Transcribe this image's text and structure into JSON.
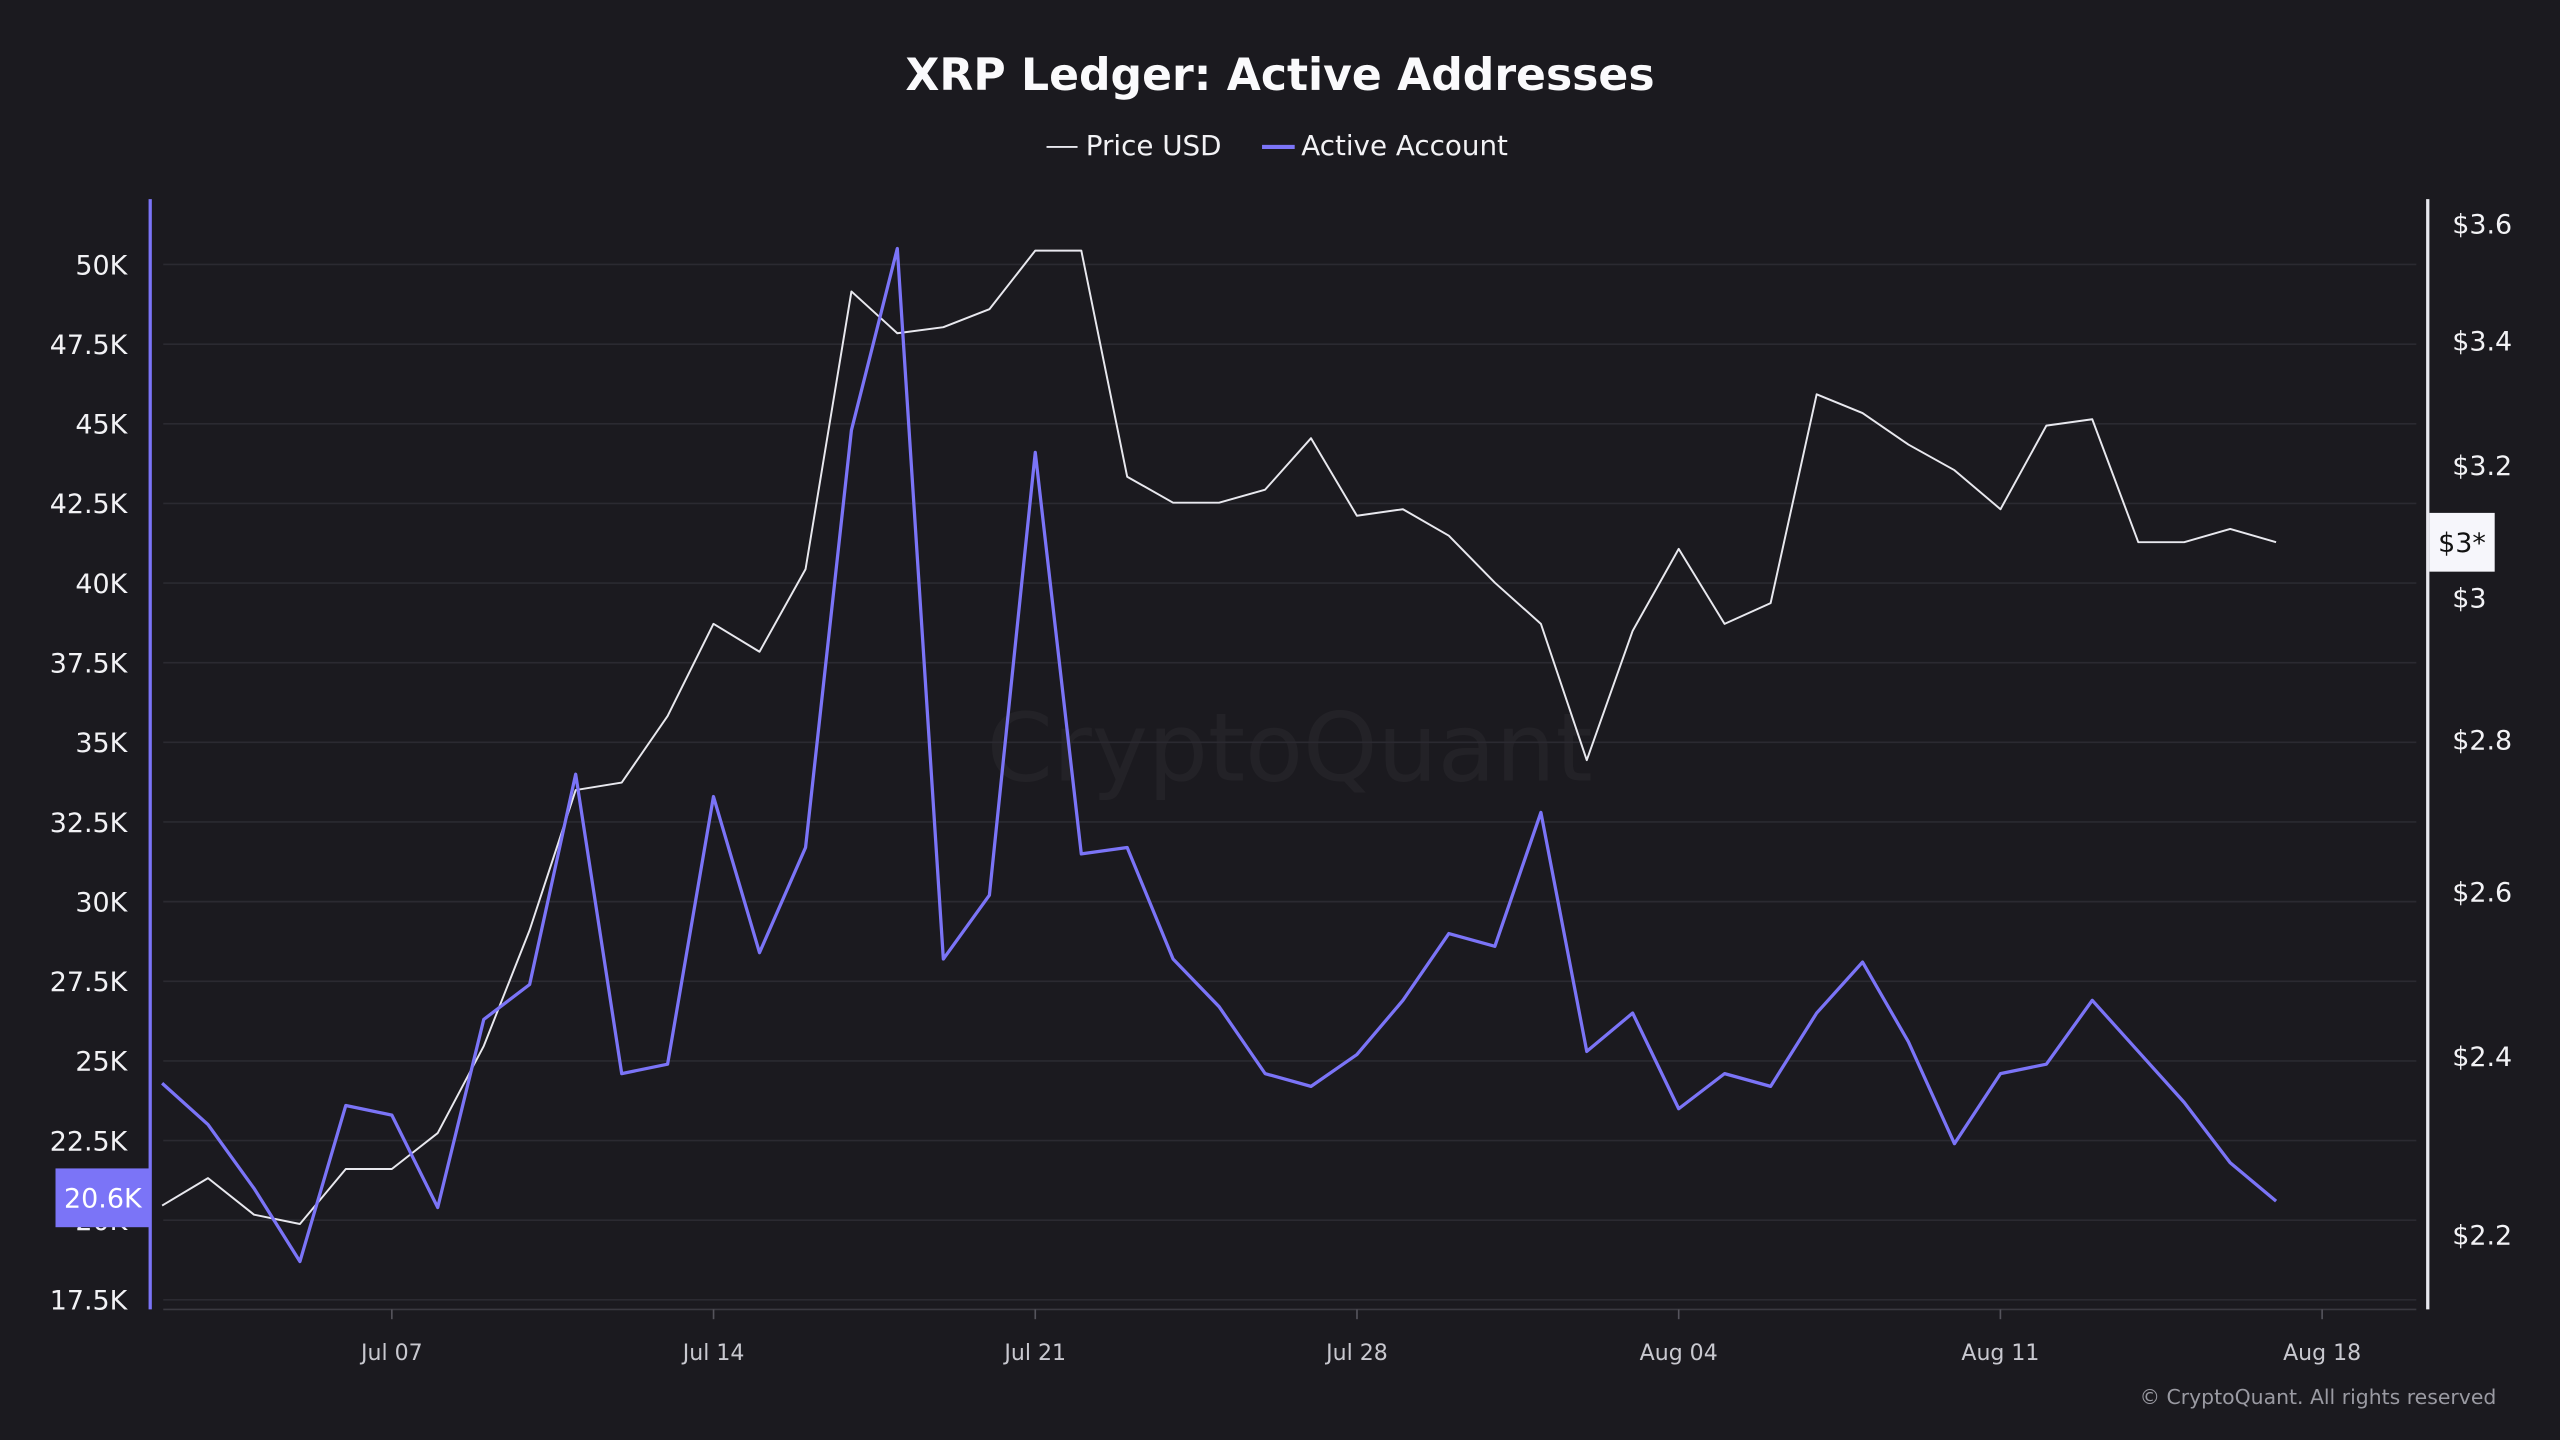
{
  "chart_data": {
    "type": "line",
    "title": "XRP Ledger: Active Addresses",
    "legend_placement": "top-center",
    "grid": true,
    "x": [
      "Jul 02",
      "Jul 03",
      "Jul 04",
      "Jul 05",
      "Jul 06",
      "Jul 07",
      "Jul 08",
      "Jul 09",
      "Jul 10",
      "Jul 11",
      "Jul 12",
      "Jul 13",
      "Jul 14",
      "Jul 15",
      "Jul 16",
      "Jul 17",
      "Jul 18",
      "Jul 19",
      "Jul 20",
      "Jul 21",
      "Jul 22",
      "Jul 23",
      "Jul 24",
      "Jul 25",
      "Jul 26",
      "Jul 27",
      "Jul 28",
      "Jul 29",
      "Jul 30",
      "Jul 31",
      "Aug 01",
      "Aug 02",
      "Aug 03",
      "Aug 04",
      "Aug 05",
      "Aug 06",
      "Aug 07",
      "Aug 08",
      "Aug 09",
      "Aug 10",
      "Aug 11",
      "Aug 12",
      "Aug 13",
      "Aug 14",
      "Aug 15",
      "Aug 16",
      "Aug 17"
    ],
    "x_ticks": [
      "Jul 07",
      "Jul 14",
      "Jul 21",
      "Jul 28",
      "Aug 04",
      "Aug 11",
      "Aug 18"
    ],
    "series": [
      {
        "name": "Price USD",
        "axis": "right",
        "color": "#e8e8ee",
        "values": [
          2.23,
          2.26,
          2.22,
          2.21,
          2.27,
          2.27,
          2.31,
          2.41,
          2.55,
          2.73,
          2.74,
          2.83,
          2.96,
          2.92,
          3.04,
          3.48,
          3.41,
          3.42,
          3.45,
          3.55,
          3.55,
          3.18,
          3.14,
          3.14,
          3.16,
          3.24,
          3.12,
          3.13,
          3.09,
          3.02,
          2.96,
          2.77,
          2.95,
          3.07,
          2.96,
          2.99,
          3.31,
          3.28,
          3.23,
          3.19,
          3.13,
          3.26,
          3.27,
          3.08,
          3.08,
          3.1,
          3.08
        ]
      },
      {
        "name": "Active Account",
        "axis": "left",
        "color": "#7b74f7",
        "values": [
          24.3,
          23.0,
          21.0,
          18.7,
          23.6,
          23.3,
          20.4,
          26.3,
          27.4,
          34.0,
          24.6,
          24.9,
          33.3,
          28.4,
          31.7,
          44.8,
          50.5,
          28.2,
          30.2,
          44.1,
          31.5,
          31.7,
          28.2,
          26.7,
          24.6,
          24.2,
          25.2,
          26.9,
          29.0,
          28.6,
          32.8,
          25.3,
          26.5,
          23.5,
          24.6,
          24.2,
          26.5,
          28.1,
          25.6,
          22.4,
          24.6,
          24.9,
          26.9,
          25.3,
          23.7,
          21.8,
          20.6
        ]
      }
    ],
    "y_left": {
      "unit": "K",
      "ticks": [
        "17.5K",
        "20K",
        "22.5K",
        "25K",
        "27.5K",
        "30K",
        "32.5K",
        "35K",
        "37.5K",
        "40K",
        "42.5K",
        "45K",
        "47.5K",
        "50K"
      ],
      "tick_values": [
        17.5,
        20,
        22.5,
        25,
        27.5,
        30,
        32.5,
        35,
        37.5,
        40,
        42.5,
        45,
        47.5,
        50
      ],
      "range": [
        17.2,
        52.05
      ],
      "scale": "linear"
    },
    "y_right": {
      "ticks": [
        "$2.2",
        "$2.4",
        "$2.6",
        "$2.8",
        "$3",
        "$3.2",
        "$3.4",
        "$3.6"
      ],
      "tick_values": [
        2.2,
        2.4,
        2.6,
        2.8,
        3,
        3.2,
        3.4,
        3.6
      ],
      "range": [
        2.12,
        3.64
      ],
      "scale": "log"
    },
    "last_value_labels": {
      "left": "20.6K",
      "right": "$3*"
    }
  },
  "legend": {
    "price": "Price USD",
    "active": "Active Account"
  },
  "watermark": "CryptoQuant",
  "footer": "© CryptoQuant. All rights reserved"
}
